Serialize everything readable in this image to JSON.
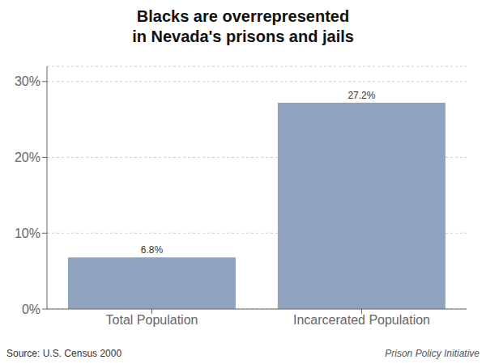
{
  "chart_data": {
    "type": "bar",
    "title": "Blacks are overrepresented\nin Nevada's prisons and jails",
    "categories": [
      "Total Population",
      "Incarcerated Population"
    ],
    "values": [
      6.8,
      27.2
    ],
    "value_labels": [
      "6.8%",
      "27.2%"
    ],
    "data_labels": true,
    "color": "#8fa3bf",
    "ylim": [
      0,
      32
    ],
    "yticks": [
      {
        "value": 0,
        "label": "0%"
      },
      {
        "value": 10,
        "label": "10%"
      },
      {
        "value": 20,
        "label": "20%"
      },
      {
        "value": 30,
        "label": "30%"
      }
    ],
    "grid": true,
    "annotations": [
      "Source: U.S. Census 2000",
      "Prison Policy Initiative"
    ]
  }
}
